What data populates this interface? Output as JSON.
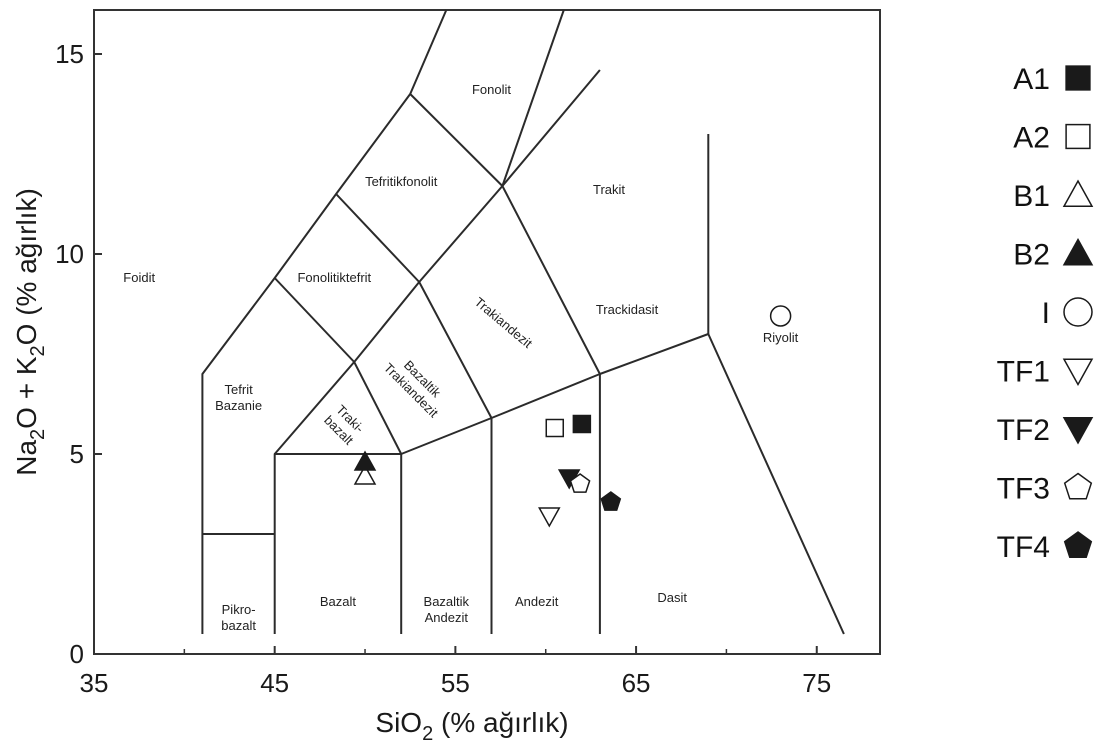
{
  "chart_data": {
    "type": "scatter",
    "title": "",
    "xlabel": "SiO",
    "xlabel_sub": "2",
    "xlabel_suffix": " (% ağırlık)",
    "ylabel_parts": [
      {
        "t": "Na",
        "sub": false
      },
      {
        "t": "2",
        "sub": true
      },
      {
        "t": "O + K",
        "sub": false
      },
      {
        "t": "2",
        "sub": true
      },
      {
        "t": "O (% ağırlık)",
        "sub": false
      }
    ],
    "xlim": [
      35,
      80
    ],
    "ylim": [
      0,
      16
    ],
    "x_ticks": [
      "35",
      "45",
      "55",
      "65",
      "75"
    ],
    "y_ticks": [
      "0",
      "5",
      "10",
      "15"
    ],
    "regions": [
      {
        "name": "Foidit",
        "lines": [
          "Foidit"
        ],
        "x": 37.5,
        "y": 9.3
      },
      {
        "name": "Tefrit Bazanie",
        "lines": [
          "Tefrit",
          "Bazanie"
        ],
        "x": 43.0,
        "y": 6.5
      },
      {
        "name": "Pikro-bazalt",
        "lines": [
          "Pikro-",
          "bazalt"
        ],
        "x": 43.0,
        "y": 1.0
      },
      {
        "name": "Bazalt",
        "lines": [
          "Bazalt"
        ],
        "x": 48.5,
        "y": 1.2
      },
      {
        "name": "Bazaltik Andezit",
        "lines": [
          "Bazaltik",
          "Andezit"
        ],
        "x": 54.5,
        "y": 1.2
      },
      {
        "name": "Andezit",
        "lines": [
          "Andezit"
        ],
        "x": 59.5,
        "y": 1.2
      },
      {
        "name": "Dasit",
        "lines": [
          "Dasit"
        ],
        "x": 67.0,
        "y": 1.3
      },
      {
        "name": "Traki-bazalt",
        "lines": [
          "Traki-",
          "bazalt"
        ],
        "x": 49.0,
        "y": 5.8,
        "rotate": 45
      },
      {
        "name": "Bazaltik Trakiandezit",
        "lines": [
          "Bazaltik",
          "Trakiandezit"
        ],
        "x": 53.0,
        "y": 6.8,
        "rotate": 45
      },
      {
        "name": "Trakiandezit",
        "lines": [
          "Trakiandezit"
        ],
        "x": 57.5,
        "y": 8.2,
        "rotate": 40
      },
      {
        "name": "Fonolitiktefrit",
        "lines": [
          "Fonolitiktefrit"
        ],
        "x": 48.3,
        "y": 9.3
      },
      {
        "name": "Tefritikfonolit",
        "lines": [
          "Tefritikfonolit"
        ],
        "x": 52.0,
        "y": 11.7
      },
      {
        "name": "Fonolit",
        "lines": [
          "Fonolit"
        ],
        "x": 57.0,
        "y": 14.0
      },
      {
        "name": "Trakit",
        "lines": [
          "Trakit"
        ],
        "x": 63.5,
        "y": 11.5
      },
      {
        "name": "Trackidasit",
        "lines": [
          "Trackidasit"
        ],
        "x": 64.5,
        "y": 8.5
      },
      {
        "name": "Riyolit",
        "lines": [
          "Riyolit"
        ],
        "x": 73.0,
        "y": 7.8
      }
    ],
    "series": [
      {
        "name": "A1",
        "marker": "square-filled",
        "x": [
          62.0
        ],
        "y": [
          5.75
        ]
      },
      {
        "name": "A2",
        "marker": "square-open",
        "x": [
          60.5
        ],
        "y": [
          5.65
        ]
      },
      {
        "name": "B1",
        "marker": "triangle-up-open",
        "x": [
          50.0
        ],
        "y": [
          4.45
        ]
      },
      {
        "name": "B2",
        "marker": "triangle-up-filled",
        "x": [
          50.0
        ],
        "y": [
          4.8
        ]
      },
      {
        "name": "I",
        "marker": "circle-open",
        "x": [
          73.0
        ],
        "y": [
          8.45
        ]
      },
      {
        "name": "TF1",
        "marker": "triangle-down-open",
        "x": [
          60.2
        ],
        "y": [
          3.45
        ]
      },
      {
        "name": "TF2",
        "marker": "triangle-down-filled",
        "x": [
          61.3
        ],
        "y": [
          4.4
        ]
      },
      {
        "name": "TF3",
        "marker": "pentagon-open",
        "x": [
          61.9
        ],
        "y": [
          4.25
        ]
      },
      {
        "name": "TF4",
        "marker": "pentagon-filled",
        "x": [
          63.6
        ],
        "y": [
          3.8
        ]
      }
    ],
    "legend_position": "right",
    "grid": false,
    "colors": {
      "ink": "#1a1a1a",
      "marker_fill": "#1a1a1a",
      "marker_open_fill": "#ffffff"
    }
  }
}
